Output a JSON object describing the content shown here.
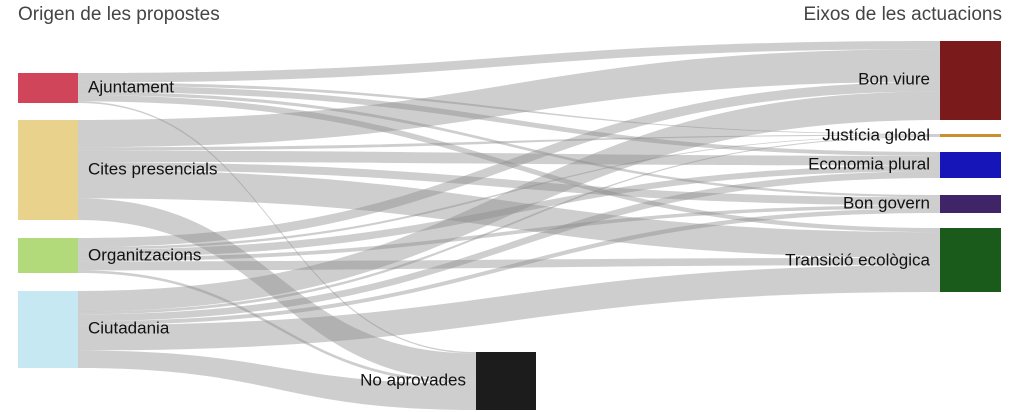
{
  "headers": {
    "left": "Origen de les propostes",
    "right": "Eixos de les actuacions"
  },
  "nodes": {
    "ajuntament": {
      "label": "Ajuntament",
      "color": "#d1455a"
    },
    "cites": {
      "label": "Cites presencials",
      "color": "#e8d28c"
    },
    "organitz": {
      "label": "Organitzacions",
      "color": "#b2da7a"
    },
    "ciutadania": {
      "label": "Ciutadania",
      "color": "#c5e8f2"
    },
    "noaprov": {
      "label": "No aprovades",
      "color": "#1c1c1c"
    },
    "bonviure": {
      "label": "Bon viure",
      "color": "#7b1a1a"
    },
    "justicia": {
      "label": "Justícia global",
      "color": "#c8902e"
    },
    "economia": {
      "label": "Economia plural",
      "color": "#1515b8"
    },
    "bongovern": {
      "label": "Bon govern",
      "color": "#3f2468"
    },
    "transicio": {
      "label": "Transició ecològica",
      "color": "#1a5a1a"
    }
  },
  "links": [
    {
      "source": "ajuntament",
      "target": "bonviure",
      "value": 6
    },
    {
      "source": "ajuntament",
      "target": "justicia",
      "value": 2
    },
    {
      "source": "ajuntament",
      "target": "economia",
      "value": 4
    },
    {
      "source": "ajuntament",
      "target": "bongovern",
      "value": 2
    },
    {
      "source": "ajuntament",
      "target": "transicio",
      "value": 4
    },
    {
      "source": "ajuntament",
      "target": "noaprov",
      "value": 1
    },
    {
      "source": "cites",
      "target": "bonviure",
      "value": 24
    },
    {
      "source": "cites",
      "target": "justicia",
      "value": 3
    },
    {
      "source": "cites",
      "target": "economia",
      "value": 10
    },
    {
      "source": "cites",
      "target": "bongovern",
      "value": 7
    },
    {
      "source": "cites",
      "target": "transicio",
      "value": 25
    },
    {
      "source": "cites",
      "target": "noaprov",
      "value": 19
    },
    {
      "source": "organitz",
      "target": "bonviure",
      "value": 7
    },
    {
      "source": "organitz",
      "target": "justicia",
      "value": 2
    },
    {
      "source": "organitz",
      "target": "economia",
      "value": 6
    },
    {
      "source": "organitz",
      "target": "bongovern",
      "value": 3
    },
    {
      "source": "organitz",
      "target": "transicio",
      "value": 7
    },
    {
      "source": "organitz",
      "target": "noaprov",
      "value": 2
    },
    {
      "source": "ciutadania",
      "target": "bonviure",
      "value": 21
    },
    {
      "source": "ciutadania",
      "target": "justicia",
      "value": 3
    },
    {
      "source": "ciutadania",
      "target": "economia",
      "value": 7
    },
    {
      "source": "ciutadania",
      "target": "bongovern",
      "value": 4
    },
    {
      "source": "ciutadania",
      "target": "transicio",
      "value": 26
    },
    {
      "source": "ciutadania",
      "target": "noaprov",
      "value": 18
    }
  ]
}
